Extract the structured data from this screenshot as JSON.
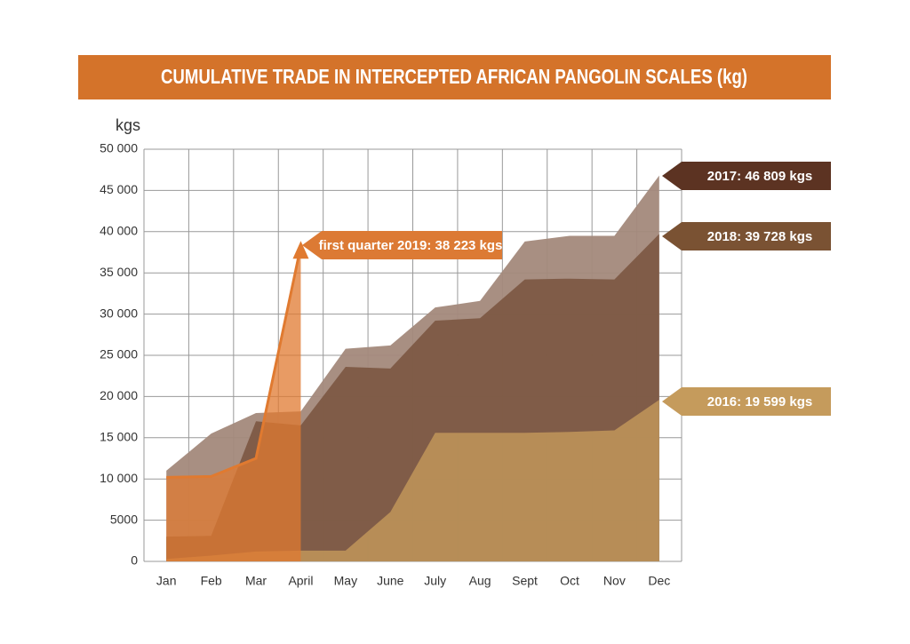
{
  "chart_data": {
    "type": "area",
    "title": "CUMULATIVE TRADE IN INTERCEPTED AFRICAN PANGOLIN SCALES (kg)",
    "y_label": "kgs",
    "categories": [
      "Jan",
      "Feb",
      "Mar",
      "April",
      "May",
      "June",
      "July",
      "Aug",
      "Sept",
      "Oct",
      "Nov",
      "Dec"
    ],
    "series": [
      {
        "label": "2017: 46 809 kgs",
        "color": "#a3897b",
        "values": [
          11000,
          15500,
          18000,
          18200,
          25800,
          26200,
          30800,
          31600,
          38800,
          39500,
          39500,
          46809
        ]
      },
      {
        "label": "2018: 39 728 kgs",
        "color": "#7d5a44",
        "values": [
          3000,
          3100,
          17000,
          16500,
          23600,
          23400,
          29200,
          29500,
          34200,
          34300,
          34200,
          39728
        ]
      },
      {
        "label": "2016: 19 599 kgs",
        "color": "#b98f58",
        "values": [
          300,
          700,
          1200,
          1300,
          1300,
          6000,
          15600,
          15600,
          15600,
          15700,
          15900,
          19599
        ]
      },
      {
        "label": "first quarter 2019: 38 223 kgs",
        "color": "#e07a30",
        "values": [
          10200,
          10300,
          12500,
          38223,
          null,
          null,
          null,
          null,
          null,
          null,
          null,
          null
        ]
      }
    ],
    "ylim": [
      0,
      50000
    ],
    "yticks": [
      0,
      {
        "value": 5000,
        "label": "5000"
      },
      {
        "value": 10000,
        "label": "10 000"
      },
      {
        "value": 15000,
        "label": "15 000"
      },
      {
        "value": 20000,
        "label": "20 000"
      },
      {
        "value": 25000,
        "label": "25 000"
      },
      {
        "value": 30000,
        "label": "30 000"
      },
      {
        "value": 35000,
        "label": "35 000"
      },
      {
        "value": 40000,
        "label": "40 000"
      },
      {
        "value": 45000,
        "label": "45 000"
      },
      {
        "value": 50000,
        "label": "50 000"
      }
    ],
    "grid": true
  }
}
